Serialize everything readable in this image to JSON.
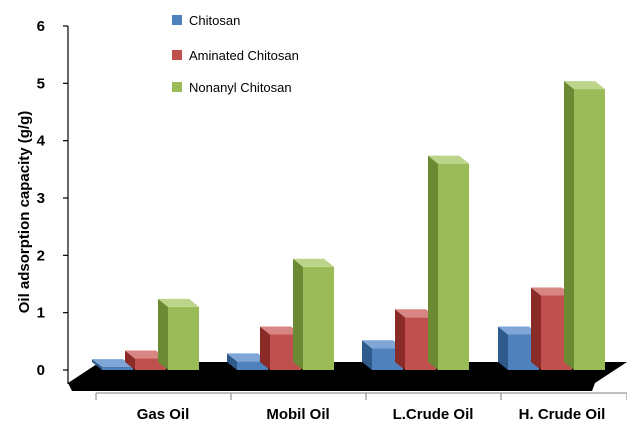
{
  "chart_data": {
    "type": "bar",
    "title": "",
    "xlabel": "",
    "ylabel": "Oil adsorption capacity (g/g)",
    "ylim": [
      0,
      6
    ],
    "yticks": [
      "0",
      "1",
      "2",
      "3",
      "4",
      "5",
      "6"
    ],
    "categories": [
      "Gas Oil",
      "Mobil Oil",
      "L.Crude Oil",
      "H. Crude Oil"
    ],
    "series": [
      {
        "name": "Chitosan",
        "values": [
          0.05,
          0.15,
          0.38,
          0.62
        ],
        "color": "#4F81BD",
        "side": "#2E5A8C",
        "top": "#7FA6D6"
      },
      {
        "name": "Aminated Chitosan",
        "values": [
          0.2,
          0.62,
          0.92,
          1.3
        ],
        "color": "#C0504D",
        "side": "#8B2B28",
        "top": "#D88683"
      },
      {
        "name": "Nonanyl Chitosan",
        "values": [
          1.1,
          1.8,
          3.6,
          4.9
        ],
        "color": "#9BBB59",
        "side": "#6B8A33",
        "top": "#BCD48A"
      }
    ],
    "legend": {
      "position": "top-left"
    },
    "grid": false
  }
}
